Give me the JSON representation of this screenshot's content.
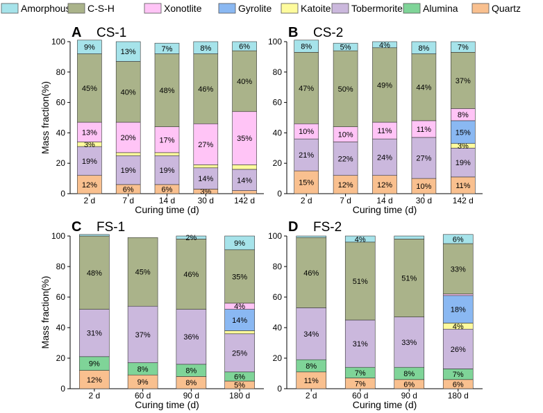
{
  "legend": [
    {
      "key": "amorphous",
      "label": "Amorphous",
      "color": "#a6e3ea"
    },
    {
      "key": "csh",
      "label": "C-S-H",
      "color": "#aab38a"
    },
    {
      "key": "xonotlite",
      "label": "Xonotlite",
      "color": "#ffc4f6"
    },
    {
      "key": "gyrolite",
      "label": "Gyrolite",
      "color": "#8ab8f2"
    },
    {
      "key": "katoite",
      "label": "Katoite",
      "color": "#fefb9d"
    },
    {
      "key": "tobermorite",
      "label": "Tobermorite",
      "color": "#cbb8dd"
    },
    {
      "key": "alumina",
      "label": "Alumina",
      "color": "#7fd498"
    },
    {
      "key": "quartz",
      "label": "Quartz",
      "color": "#f9c08f"
    }
  ],
  "chart_data": [
    {
      "type": "bar",
      "stacked": true,
      "panel_letter": "A",
      "title": "CS-1",
      "xlabel": "Curing time (d)",
      "ylabel": "Mass fraction(%)",
      "ylim": [
        0,
        100
      ],
      "yticks": [
        "0",
        "20",
        "40",
        "60",
        "80",
        "100"
      ],
      "categories": [
        "2 d",
        "7 d",
        "14 d",
        "30 d",
        "142 d"
      ],
      "series": [
        {
          "key": "quartz",
          "values": [
            12,
            6,
            6,
            3,
            2
          ],
          "labels": [
            "12%",
            "6%",
            "6%",
            "3%",
            ""
          ]
        },
        {
          "key": "alumina",
          "values": [
            0,
            0,
            0,
            0,
            0
          ],
          "labels": [
            "",
            "",
            "",
            "",
            ""
          ]
        },
        {
          "key": "tobermorite",
          "values": [
            19,
            19,
            19,
            14,
            14
          ],
          "labels": [
            "19%",
            "19%",
            "19%",
            "14%",
            "14%"
          ]
        },
        {
          "key": "katoite",
          "values": [
            3,
            2,
            2,
            2,
            3
          ],
          "labels": [
            "3%",
            "",
            "",
            "",
            ""
          ]
        },
        {
          "key": "gyrolite",
          "values": [
            0,
            0,
            0,
            0,
            0
          ],
          "labels": [
            "",
            "",
            "",
            "",
            ""
          ]
        },
        {
          "key": "xonotlite",
          "values": [
            13,
            20,
            17,
            27,
            35
          ],
          "labels": [
            "13%",
            "20%",
            "17%",
            "27%",
            "35%"
          ]
        },
        {
          "key": "csh",
          "values": [
            45,
            40,
            48,
            46,
            40
          ],
          "labels": [
            "45%",
            "40%",
            "48%",
            "46%",
            "40%"
          ]
        },
        {
          "key": "amorphous",
          "values": [
            9,
            13,
            7,
            8,
            6
          ],
          "labels": [
            "9%",
            "13%",
            "7%",
            "8%",
            "6%"
          ]
        }
      ]
    },
    {
      "type": "bar",
      "stacked": true,
      "panel_letter": "B",
      "title": "CS-2",
      "xlabel": "Curing time (d)",
      "ylabel": "",
      "ylim": [
        0,
        100
      ],
      "yticks": [
        "0",
        "20",
        "40",
        "60",
        "80",
        "100"
      ],
      "categories": [
        "2 d",
        "7 d",
        "14 d",
        "30 d",
        "142 d"
      ],
      "series": [
        {
          "key": "quartz",
          "values": [
            15,
            12,
            12,
            10,
            11
          ],
          "labels": [
            "15%",
            "12%",
            "12%",
            "10%",
            "11%"
          ]
        },
        {
          "key": "alumina",
          "values": [
            0,
            0,
            0,
            0,
            0
          ],
          "labels": [
            "",
            "",
            "",
            "",
            ""
          ]
        },
        {
          "key": "tobermorite",
          "values": [
            21,
            22,
            24,
            27,
            19
          ],
          "labels": [
            "21%",
            "22%",
            "24%",
            "27%",
            "19%"
          ]
        },
        {
          "key": "katoite",
          "values": [
            0,
            0,
            0,
            0,
            3
          ],
          "labels": [
            "",
            "",
            "",
            "",
            "3%"
          ]
        },
        {
          "key": "gyrolite",
          "values": [
            0,
            0,
            0,
            0,
            15
          ],
          "labels": [
            "",
            "",
            "",
            "",
            "15%"
          ]
        },
        {
          "key": "xonotlite",
          "values": [
            10,
            10,
            11,
            11,
            8
          ],
          "labels": [
            "10%",
            "10%",
            "11%",
            "11%",
            "8%"
          ]
        },
        {
          "key": "csh",
          "values": [
            47,
            50,
            49,
            44,
            37
          ],
          "labels": [
            "47%",
            "50%",
            "49%",
            "44%",
            "37%"
          ]
        },
        {
          "key": "amorphous",
          "values": [
            8,
            5,
            4,
            8,
            7
          ],
          "labels": [
            "8%",
            "5%",
            "4%",
            "8%",
            "7%"
          ]
        }
      ]
    },
    {
      "type": "bar",
      "stacked": true,
      "panel_letter": "C",
      "title": "FS-1",
      "xlabel": "Curing time (d)",
      "ylabel": "Mass fraction(%)",
      "ylim": [
        0,
        100
      ],
      "yticks": [
        "0",
        "20",
        "40",
        "60",
        "80",
        "100"
      ],
      "categories": [
        "2 d",
        "60 d",
        "90 d",
        "180 d"
      ],
      "series": [
        {
          "key": "quartz",
          "values": [
            12,
            9,
            8,
            5
          ],
          "labels": [
            "12%",
            "9%",
            "8%",
            "5%"
          ]
        },
        {
          "key": "alumina",
          "values": [
            9,
            8,
            8,
            6
          ],
          "labels": [
            "9%",
            "8%",
            "8%",
            "6%"
          ]
        },
        {
          "key": "tobermorite",
          "values": [
            31,
            37,
            36,
            25
          ],
          "labels": [
            "31%",
            "37%",
            "36%",
            "25%"
          ]
        },
        {
          "key": "katoite",
          "values": [
            0,
            0,
            0,
            2
          ],
          "labels": [
            "",
            "",
            "",
            ""
          ]
        },
        {
          "key": "gyrolite",
          "values": [
            0,
            0,
            0,
            14
          ],
          "labels": [
            "",
            "",
            "",
            "14%"
          ]
        },
        {
          "key": "xonotlite",
          "values": [
            0,
            0,
            0,
            4
          ],
          "labels": [
            "",
            "",
            "",
            "4%"
          ]
        },
        {
          "key": "csh",
          "values": [
            48,
            45,
            46,
            35
          ],
          "labels": [
            "48%",
            "45%",
            "46%",
            "35%"
          ]
        },
        {
          "key": "amorphous",
          "values": [
            1,
            0,
            2,
            9
          ],
          "labels": [
            "",
            "",
            "2%",
            "9%"
          ]
        }
      ]
    },
    {
      "type": "bar",
      "stacked": true,
      "panel_letter": "D",
      "title": "FS-2",
      "xlabel": "Curing time (d)",
      "ylabel": "",
      "ylim": [
        0,
        100
      ],
      "yticks": [
        "0",
        "20",
        "40",
        "60",
        "80",
        "100"
      ],
      "categories": [
        "2 d",
        "60 d",
        "90 d",
        "180 d"
      ],
      "series": [
        {
          "key": "quartz",
          "values": [
            11,
            7,
            6,
            6
          ],
          "labels": [
            "11%",
            "7%",
            "6%",
            "6%"
          ]
        },
        {
          "key": "alumina",
          "values": [
            8,
            7,
            8,
            7
          ],
          "labels": [
            "8%",
            "7%",
            "8%",
            "7%"
          ]
        },
        {
          "key": "tobermorite",
          "values": [
            34,
            31,
            33,
            26
          ],
          "labels": [
            "34%",
            "31%",
            "33%",
            "26%"
          ]
        },
        {
          "key": "katoite",
          "values": [
            0,
            0,
            0,
            4
          ],
          "labels": [
            "",
            "",
            "",
            "4%"
          ]
        },
        {
          "key": "gyrolite",
          "values": [
            0,
            0,
            0,
            18
          ],
          "labels": [
            "",
            "",
            "",
            "18%"
          ]
        },
        {
          "key": "xonotlite",
          "values": [
            0,
            0,
            0,
            1
          ],
          "labels": [
            "",
            "",
            "",
            ""
          ]
        },
        {
          "key": "csh",
          "values": [
            46,
            51,
            51,
            33
          ],
          "labels": [
            "46%",
            "51%",
            "51%",
            "33%"
          ]
        },
        {
          "key": "amorphous",
          "values": [
            1,
            4,
            2,
            6
          ],
          "labels": [
            "",
            "4%",
            "",
            "6%"
          ]
        }
      ]
    }
  ]
}
